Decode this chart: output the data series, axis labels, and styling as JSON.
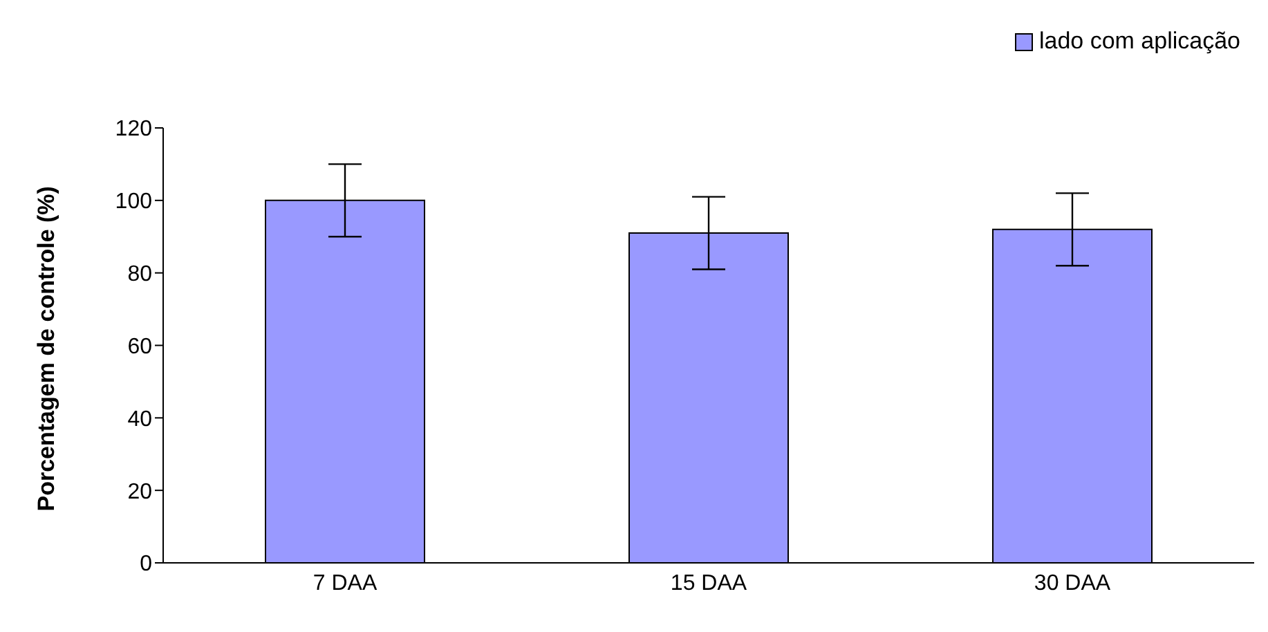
{
  "chart_data": {
    "type": "bar",
    "ylabel": "Porcentagem de controle (%)",
    "categories": [
      "7 DAA",
      "15 DAA",
      "30 DAA"
    ],
    "series": [
      {
        "name": "lado com aplicação",
        "color": "#9999ff",
        "values": [
          100,
          91,
          92
        ],
        "errors": [
          10,
          10,
          10
        ]
      }
    ],
    "ylim": [
      0,
      120
    ],
    "yticks": [
      0,
      20,
      40,
      60,
      80,
      100,
      120
    ],
    "grid": false,
    "legend": "top right"
  }
}
